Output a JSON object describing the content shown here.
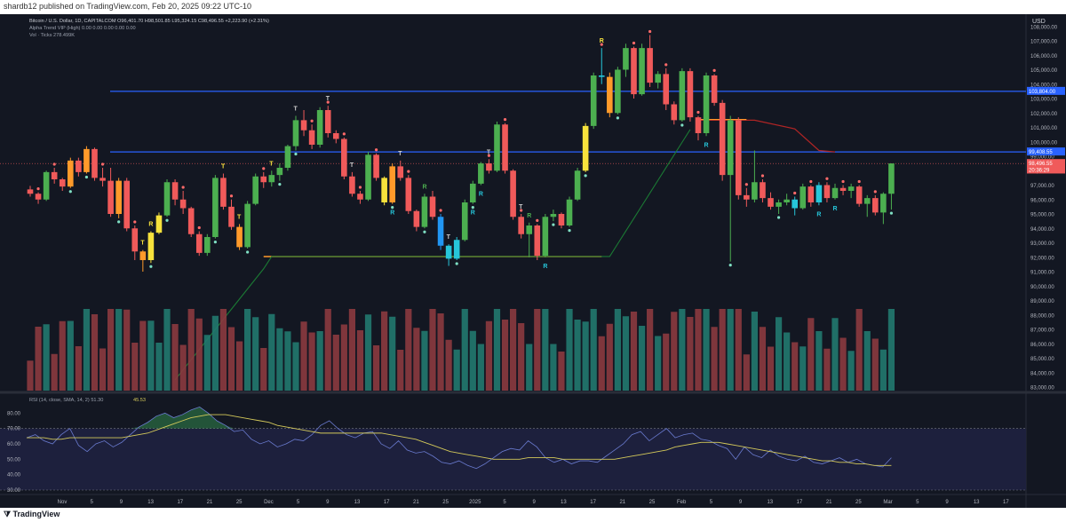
{
  "header": {
    "publisher": "shardb12 published on TradingView.com, Feb 20, 2025 09:22 UTC-10"
  },
  "footer": {
    "brand": "TradingView"
  },
  "legend": {
    "line1": "Bitcoin / U.S. Dollar, 1D, CAPITALCOM  O96,401.70  H98,501.85  L95,324.15  C98,496.55  +2,223.90 (+2.31%)",
    "line2": "Alpha Trend VIP (High)  0.00  0.00  0.00  0.00  0.00",
    "line3": "Vol · Ticks  278.499K"
  },
  "rsi_legend": {
    "text": "RSI (14, close, SMA, 14, 2)  51.30",
    "value": "45.53"
  },
  "currency": "USD",
  "colors": {
    "bg": "#131722",
    "up": "#4caf50",
    "down": "#f05a5a",
    "yellow": "#f7e23c",
    "orange": "#ff9a2a",
    "cyan": "#26c6da",
    "blue": "#2962ff",
    "trend": "#1b7a34",
    "rsi_line": "#6a7bd0",
    "rsi_ma": "#d4c95a"
  },
  "chart_data": {
    "type": "candlestick",
    "symbol": "BTCUSD",
    "timeframe": "1D",
    "x_ticks": [
      "Nov",
      "5",
      "9",
      "13",
      "17",
      "21",
      "25",
      "Dec",
      "5",
      "9",
      "13",
      "17",
      "21",
      "25",
      "2025",
      "5",
      "9",
      "13",
      "17",
      "21",
      "25",
      "Feb",
      "5",
      "9",
      "13",
      "17",
      "21",
      "25",
      "Mar",
      "5",
      "9",
      "13",
      "17"
    ],
    "y_ticks": [
      "108,000.00",
      "107,000.00",
      "106,000.00",
      "105,000.00",
      "104,000.00",
      "103,000.00",
      "102,000.00",
      "101,000.00",
      "100,000.00",
      "99,000.00",
      "98,000.00",
      "97,000.00",
      "96,000.00",
      "95,000.00",
      "94,000.00",
      "93,000.00",
      "92,000.00",
      "91,000.00",
      "90,000.00",
      "89,000.00",
      "88,000.00",
      "87,000.00",
      "86,000.00",
      "85,000.00",
      "84,000.00",
      "83,000.00"
    ],
    "ylim": [
      83000,
      108600
    ],
    "price_labels": [
      {
        "text": "103,804.00",
        "price": 103500,
        "color": "#2962ff"
      },
      {
        "text": "99,408.55",
        "price": 99300,
        "color": "#2962ff"
      },
      {
        "text": "98,496.55",
        "price": 98496,
        "color": "#f05a5a"
      },
      {
        "text": "20:36:29",
        "price": 98050,
        "color": "#f05a5a"
      }
    ],
    "levels": [
      103500,
      99300
    ],
    "support": {
      "price": 92050,
      "color": "#ff9a2a"
    },
    "candles": [
      [
        96700,
        96950,
        96200,
        96400
      ],
      [
        96400,
        96500,
        95700,
        96000
      ],
      [
        96000,
        98000,
        95900,
        97900
      ],
      [
        97900,
        98200,
        97100,
        97400
      ],
      [
        97400,
        97500,
        96600,
        96900
      ],
      [
        96900,
        98900,
        96800,
        98700
      ],
      [
        98700,
        98900,
        97600,
        97900
      ],
      [
        97900,
        99700,
        97800,
        99500
      ],
      [
        99500,
        99600,
        97300,
        97500
      ],
      [
        97500,
        98200,
        96900,
        97300
      ],
      [
        97300,
        98200,
        94800,
        95000
      ],
      [
        95000,
        97500,
        94700,
        97300
      ],
      [
        97300,
        97500,
        93800,
        94000
      ],
      [
        94000,
        94200,
        91800,
        92400
      ],
      [
        92400,
        92500,
        91000,
        91800
      ],
      [
        91800,
        93800,
        91600,
        93700
      ],
      [
        93700,
        95100,
        93600,
        94900
      ],
      [
        94900,
        97400,
        94800,
        97200
      ],
      [
        97200,
        97400,
        95600,
        96000
      ],
      [
        96000,
        96600,
        95000,
        95400
      ],
      [
        95400,
        95500,
        93400,
        93600
      ],
      [
        93600,
        93800,
        92100,
        92300
      ],
      [
        92300,
        93600,
        92100,
        93400
      ],
      [
        93400,
        97700,
        93300,
        97500
      ],
      [
        97500,
        97800,
        95300,
        95500
      ],
      [
        95500,
        96000,
        93900,
        94100
      ],
      [
        94100,
        94300,
        92500,
        92700
      ],
      [
        92700,
        95900,
        92600,
        95700
      ],
      [
        95700,
        97800,
        95600,
        97600
      ],
      [
        97600,
        97900,
        96800,
        97200
      ],
      [
        97200,
        98000,
        96900,
        97700
      ],
      [
        97700,
        98500,
        97300,
        98200
      ],
      [
        98200,
        99800,
        98000,
        99700
      ],
      [
        99700,
        101800,
        99400,
        101500
      ],
      [
        101500,
        102200,
        100400,
        100800
      ],
      [
        100800,
        101200,
        99500,
        99800
      ],
      [
        99800,
        102400,
        99600,
        102200
      ],
      [
        102200,
        102500,
        100300,
        100600
      ],
      [
        100600,
        100800,
        99900,
        100200
      ],
      [
        100200,
        100300,
        97400,
        97600
      ],
      [
        97600,
        97900,
        96200,
        96400
      ],
      [
        96400,
        96600,
        95700,
        96000
      ],
      [
        96000,
        99300,
        95900,
        99100
      ],
      [
        99100,
        99200,
        97300,
        97500
      ],
      [
        97500,
        97600,
        95600,
        95800
      ],
      [
        95800,
        98500,
        95700,
        98300
      ],
      [
        98300,
        98700,
        97300,
        97500
      ],
      [
        97500,
        97700,
        95000,
        95200
      ],
      [
        95200,
        95300,
        93800,
        94100
      ],
      [
        94100,
        96400,
        94000,
        96200
      ],
      [
        96200,
        96600,
        94600,
        94800
      ],
      [
        94800,
        95000,
        92500,
        92800
      ],
      [
        92800,
        92900,
        91400,
        91900
      ],
      [
        91900,
        93400,
        91800,
        93200
      ],
      [
        93200,
        96000,
        93100,
        95800
      ],
      [
        95800,
        97300,
        95700,
        97100
      ],
      [
        97100,
        98600,
        97000,
        98500
      ],
      [
        98500,
        98800,
        97800,
        98000
      ],
      [
        98000,
        101400,
        97900,
        101200
      ],
      [
        101200,
        101300,
        97800,
        98000
      ],
      [
        98000,
        98100,
        94600,
        94800
      ],
      [
        94800,
        95000,
        93300,
        93600
      ],
      [
        93600,
        94400,
        92000,
        94200
      ],
      [
        94200,
        94300,
        91800,
        92100
      ],
      [
        92100,
        95000,
        92000,
        94800
      ],
      [
        94800,
        95300,
        94500,
        95000
      ],
      [
        95000,
        95100,
        94000,
        94200
      ],
      [
        94200,
        96200,
        94100,
        96000
      ],
      [
        96000,
        98200,
        95900,
        98000
      ],
      [
        98000,
        101300,
        97900,
        101100
      ],
      [
        101100,
        104800,
        100900,
        104600
      ],
      [
        104600,
        106500,
        104000,
        104500
      ],
      [
        104500,
        104800,
        101700,
        102000
      ],
      [
        102000,
        105200,
        101900,
        105000
      ],
      [
        105000,
        106800,
        104500,
        106500
      ],
      [
        106500,
        106600,
        103000,
        103300
      ],
      [
        103300,
        106800,
        103200,
        106500
      ],
      [
        106500,
        107400,
        103800,
        104100
      ],
      [
        104100,
        104900,
        103700,
        104700
      ],
      [
        104700,
        105100,
        102200,
        102600
      ],
      [
        102600,
        102800,
        101200,
        101500
      ],
      [
        101500,
        105100,
        101400,
        104900
      ],
      [
        104900,
        105100,
        101400,
        101700
      ],
      [
        101700,
        101800,
        100100,
        100600
      ],
      [
        100600,
        104800,
        100400,
        104600
      ],
      [
        104600,
        104700,
        102500,
        102700
      ],
      [
        102700,
        102900,
        97300,
        97700
      ],
      [
        97700,
        101800,
        91700,
        101500
      ],
      [
        101500,
        101700,
        96000,
        96300
      ],
      [
        96300,
        96800,
        95500,
        96000
      ],
      [
        96000,
        99400,
        95800,
        97200
      ],
      [
        97200,
        97400,
        95800,
        96100
      ],
      [
        96100,
        96500,
        95300,
        95500
      ],
      [
        95500,
        96000,
        95000,
        95800
      ],
      [
        95800,
        96400,
        95600,
        96000
      ],
      [
        96000,
        96200,
        94900,
        95400
      ],
      [
        95400,
        97100,
        95300,
        96900
      ],
      [
        96900,
        97000,
        95500,
        95800
      ],
      [
        95800,
        97200,
        95600,
        97000
      ],
      [
        97000,
        97200,
        95800,
        96100
      ],
      [
        96100,
        97100,
        96000,
        96800
      ],
      [
        96800,
        97000,
        96300,
        96600
      ],
      [
        96600,
        97100,
        96100,
        96900
      ],
      [
        96900,
        97000,
        95500,
        95700
      ],
      [
        95700,
        96300,
        94800,
        96100
      ],
      [
        96100,
        96300,
        94900,
        95100
      ],
      [
        95100,
        96500,
        94300,
        96400
      ],
      [
        96400,
        98500,
        95300,
        98500
      ]
    ],
    "alpha_trend": [
      86000,
      86200,
      86800,
      87200,
      87900,
      88600,
      89300,
      90000,
      90500,
      91000,
      91500,
      91700,
      91900,
      92000
    ],
    "dots": [],
    "volume_ylim": [
      0,
      100
    ],
    "rsi": {
      "ylim": [
        30,
        90
      ],
      "y_ticks": [
        "80.00",
        "70.00",
        "60.00",
        "50.00",
        "40.00",
        "30.00"
      ],
      "bands": [
        70,
        30
      ],
      "series": [
        64,
        66,
        62,
        60,
        66,
        70,
        59,
        55,
        60,
        62,
        58,
        61,
        66,
        71,
        74,
        78,
        80,
        77,
        79,
        82,
        84,
        80,
        75,
        72,
        68,
        69,
        63,
        60,
        62,
        58,
        60,
        63,
        62,
        66,
        72,
        75,
        70,
        66,
        64,
        67,
        68,
        60,
        57,
        62,
        56,
        54,
        55,
        52,
        48,
        47,
        49,
        46,
        44,
        47,
        51,
        55,
        57,
        56,
        62,
        58,
        51,
        48,
        50,
        47,
        49,
        49,
        48,
        52,
        56,
        60,
        66,
        68,
        62,
        66,
        70,
        64,
        66,
        67,
        63,
        62,
        59,
        57,
        50,
        58,
        53,
        51,
        56,
        52,
        50,
        49,
        52,
        48,
        47,
        49,
        51,
        48,
        50,
        47,
        46,
        45,
        51
      ],
      "ma": [
        64,
        64,
        64,
        63,
        63,
        64,
        64,
        64,
        64,
        64,
        64,
        64,
        65,
        66,
        67,
        69,
        71,
        73,
        75,
        77,
        78,
        79,
        79,
        79,
        78,
        77,
        76,
        75,
        74,
        72,
        71,
        70,
        69,
        68,
        67,
        67,
        67,
        67,
        67,
        67,
        67,
        67,
        66,
        65,
        64,
        63,
        61,
        59,
        57,
        55,
        54,
        53,
        52,
        51,
        50,
        50,
        50,
        50,
        51,
        51,
        51,
        51,
        50,
        50,
        50,
        50,
        50,
        50,
        50,
        51,
        52,
        53,
        54,
        55,
        56,
        58,
        59,
        60,
        61,
        61,
        61,
        60,
        59,
        58,
        57,
        56,
        55,
        54,
        53,
        52,
        51,
        50,
        49,
        49,
        48,
        48,
        47,
        47,
        46,
        46,
        46
      ]
    }
  }
}
